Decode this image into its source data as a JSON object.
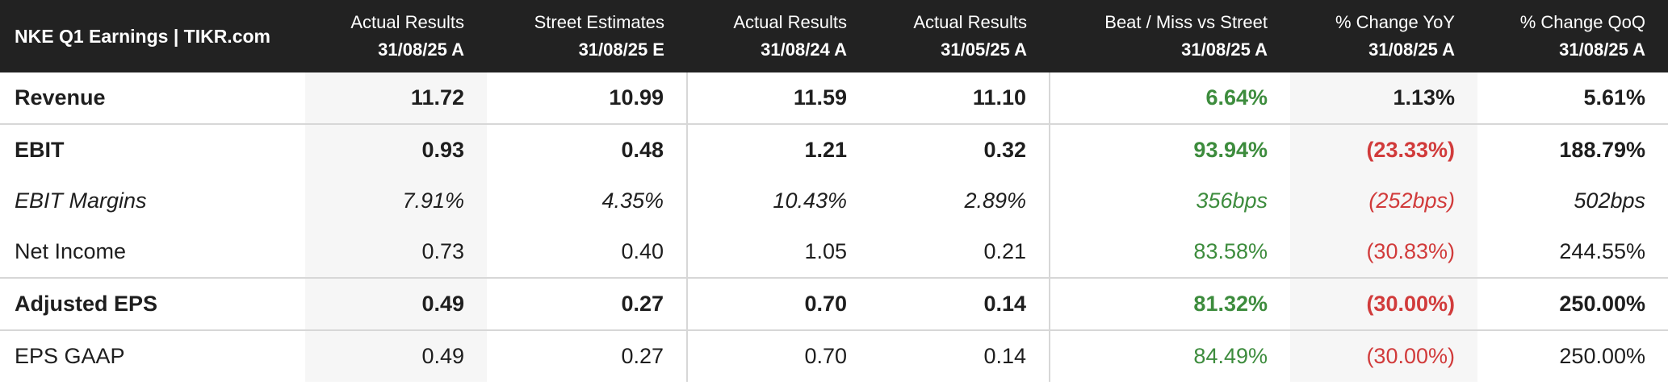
{
  "table": {
    "title": "NKE Q1 Earnings | TIKR.com",
    "columns": [
      {
        "line1": "Actual Results",
        "line2": "31/08/25 A"
      },
      {
        "line1": "Street Estimates",
        "line2": "31/08/25 E"
      },
      {
        "line1": "Actual Results",
        "line2": "31/08/24 A"
      },
      {
        "line1": "Actual Results",
        "line2": "31/05/25 A"
      },
      {
        "line1": "Beat / Miss vs Street",
        "line2": "31/08/25 A"
      },
      {
        "line1": "% Change YoY",
        "line2": "31/08/25 A"
      },
      {
        "line1": "% Change QoQ",
        "line2": "31/08/25 A"
      }
    ],
    "rows": [
      {
        "label": "Revenue",
        "values": [
          "11.72",
          "10.99",
          "11.59",
          "11.10",
          "6.64%",
          "1.13%",
          "5.61%"
        ]
      },
      {
        "label": "EBIT",
        "values": [
          "0.93",
          "0.48",
          "1.21",
          "0.32",
          "93.94%",
          "(23.33%)",
          "188.79%"
        ]
      },
      {
        "label": "EBIT Margins",
        "values": [
          "7.91%",
          "4.35%",
          "10.43%",
          "2.89%",
          "356bps",
          "(252bps)",
          "502bps"
        ]
      },
      {
        "label": "Net Income",
        "values": [
          "0.73",
          "0.40",
          "1.05",
          "0.21",
          "83.58%",
          "(30.83%)",
          "244.55%"
        ]
      },
      {
        "label": "Adjusted EPS",
        "values": [
          "0.49",
          "0.27",
          "0.70",
          "0.14",
          "81.32%",
          "(30.00%)",
          "250.00%"
        ]
      },
      {
        "label": "EPS GAAP",
        "values": [
          "0.49",
          "0.27",
          "0.70",
          "0.14",
          "84.49%",
          "(30.00%)",
          "250.00%"
        ]
      }
    ]
  },
  "colors": {
    "header_bg": "#222222",
    "positive": "#3d8c3d",
    "negative": "#d13b3b"
  }
}
